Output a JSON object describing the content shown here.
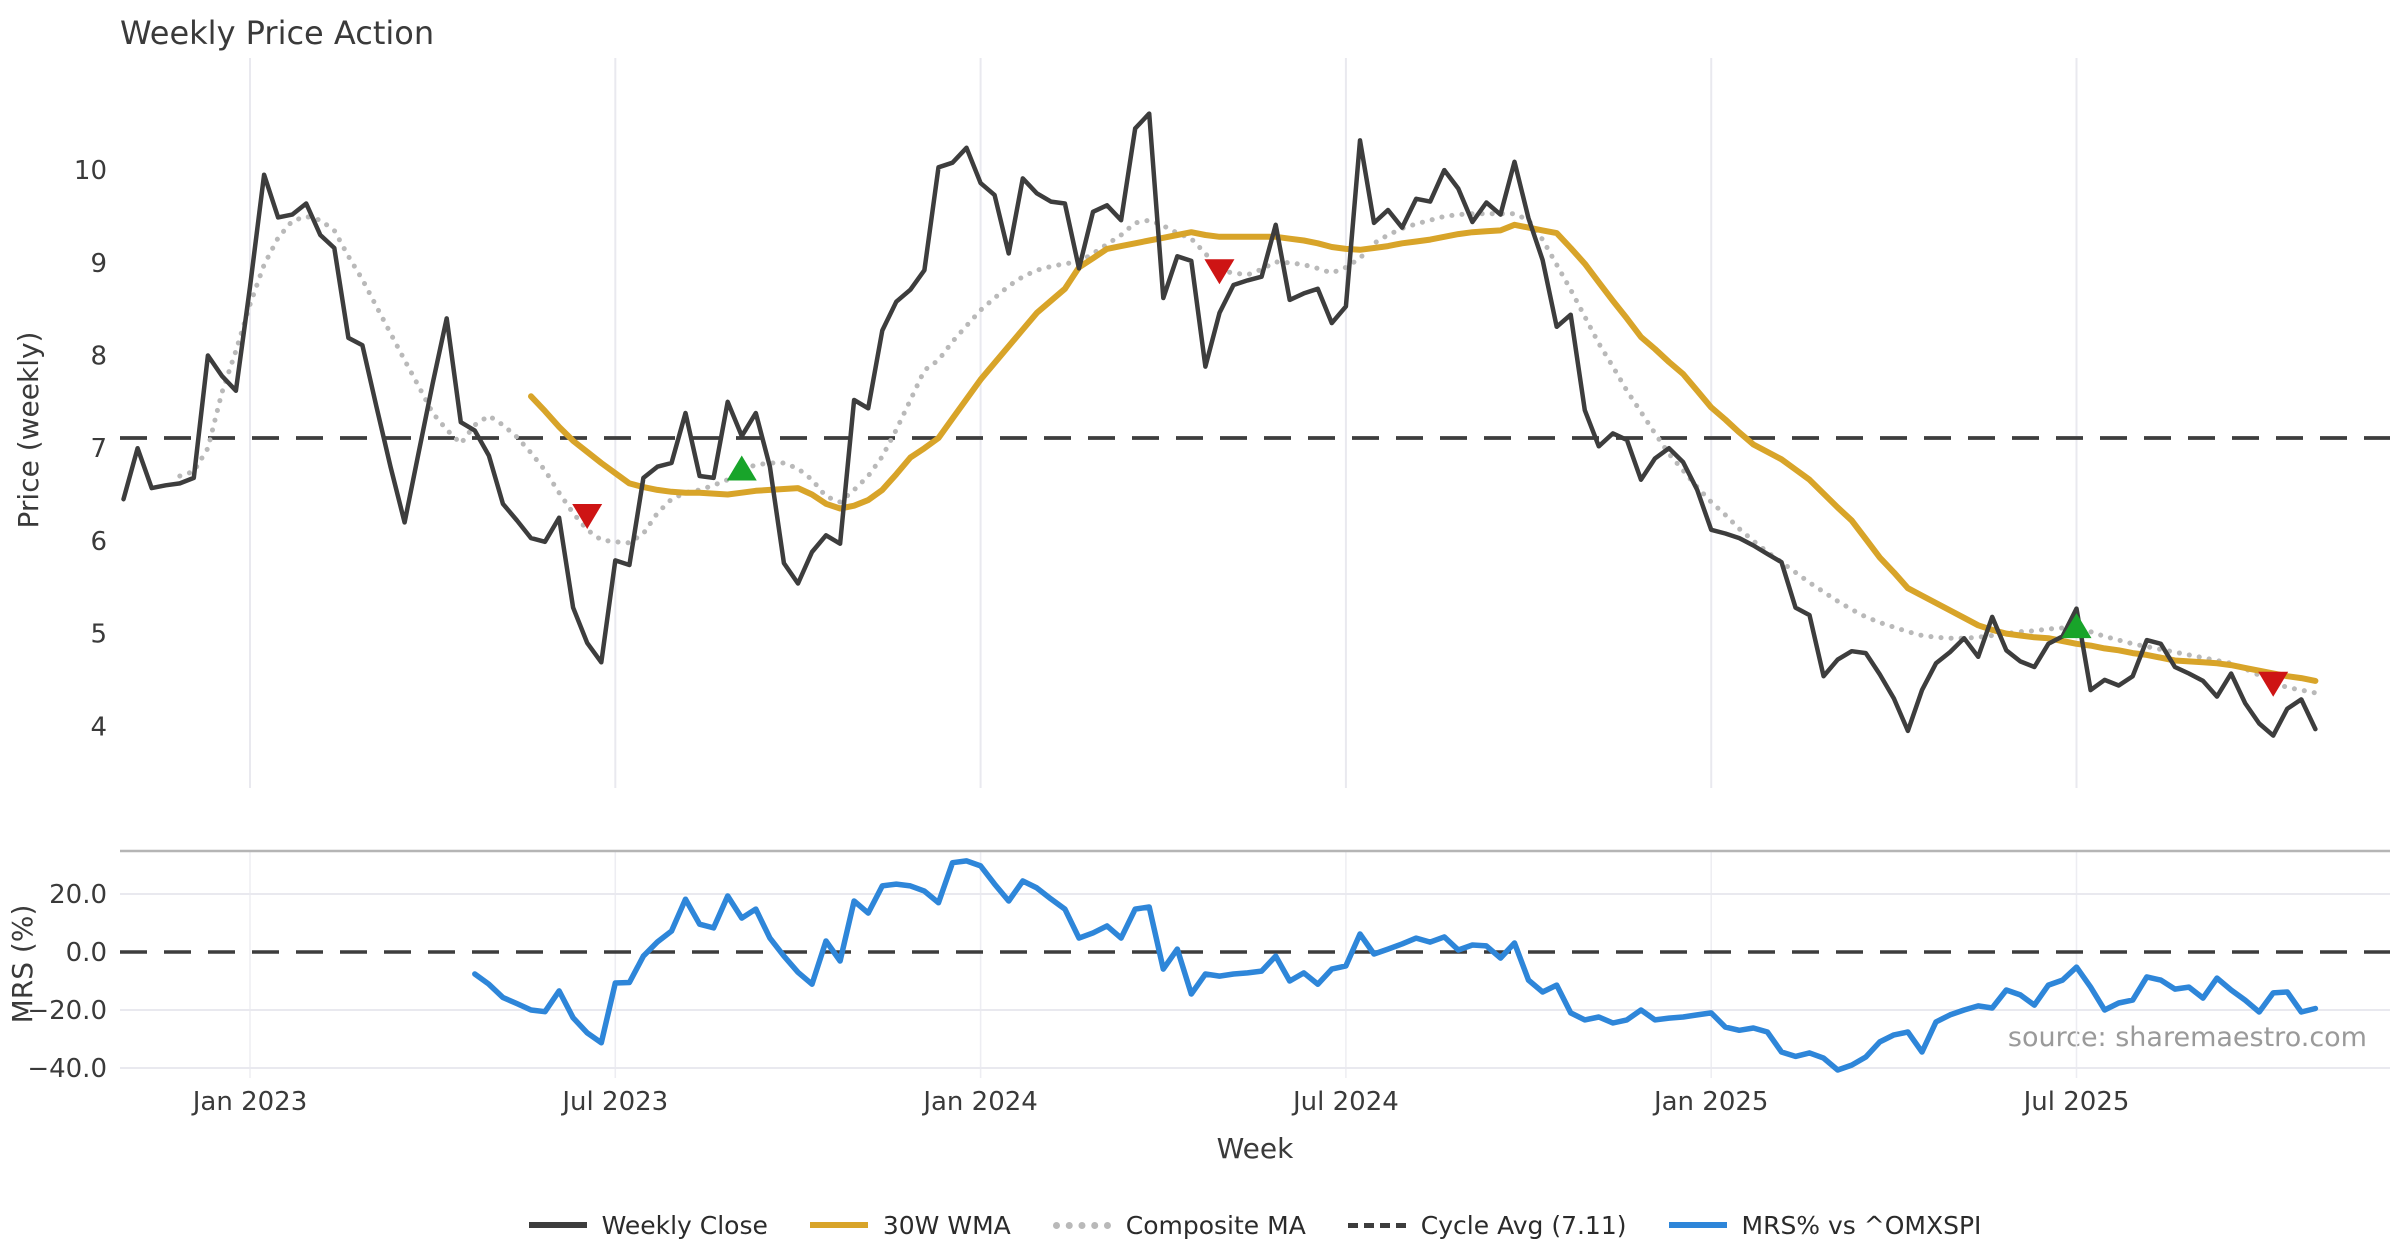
{
  "title": "Weekly Price Action",
  "xlabel": "Week",
  "source": "source: sharemaestro.com",
  "colors": {
    "weekly_close": "#3d3d3d",
    "wma30": "#d8a429",
    "composite": "#b9b9b9",
    "cycle_avg": "#3d3d3d",
    "mrs": "#2e86d9",
    "sell_marker": "#ce1414",
    "buy_marker": "#18a42a",
    "grid": "#e9e9ef",
    "grid_faint": "#ededf2",
    "spine": "#b5b5b5"
  },
  "legend": {
    "items": [
      {
        "label": "Weekly Close",
        "color": "#3d3d3d",
        "style": "solid"
      },
      {
        "label": "30W WMA",
        "color": "#d8a429",
        "style": "solid"
      },
      {
        "label": "Composite MA",
        "color": "#b9b9b9",
        "style": "dotted"
      },
      {
        "label": "Cycle Avg (7.11)",
        "color": "#3d3d3d",
        "style": "dashed"
      },
      {
        "label": "MRS% vs ^OMXSPI",
        "color": "#2e86d9",
        "style": "solid"
      }
    ]
  },
  "chart_data": [
    {
      "type": "line",
      "panel": "price",
      "title": "Weekly Price Action",
      "ylabel": "Price (weekly)",
      "ylim": [
        3.4,
        11.0
      ],
      "yticks": [
        4,
        5,
        6,
        7,
        8,
        9,
        10
      ],
      "grid": "vertical-only",
      "cycle_avg": 7.11,
      "x_ticks": [
        {
          "week": 9,
          "label": "Jan 2023"
        },
        {
          "week": 35,
          "label": "Jul 2023"
        },
        {
          "week": 61,
          "label": "Jan 2024"
        },
        {
          "week": 87,
          "label": "Jul 2024"
        },
        {
          "week": 113,
          "label": "Jan 2025"
        },
        {
          "week": 139,
          "label": "Jul 2025"
        }
      ],
      "series": [
        {
          "name": "Weekly Close",
          "style": "solid",
          "color": "#3d3d3d",
          "width": 4.5,
          "start_week": 0,
          "values": [
            6.45,
            7.0,
            6.57,
            6.6,
            6.62,
            6.68,
            8.0,
            7.78,
            7.62,
            8.74,
            9.95,
            9.49,
            9.52,
            9.64,
            9.3,
            9.16,
            8.19,
            8.11,
            7.45,
            6.8,
            6.2,
            6.95,
            7.7,
            8.4,
            7.28,
            7.19,
            6.92,
            6.4,
            6.22,
            6.03,
            5.99,
            6.25,
            5.28,
            4.9,
            4.69,
            5.79,
            5.74,
            6.68,
            6.8,
            6.84,
            7.38,
            6.7,
            6.68,
            7.5,
            7.13,
            7.38,
            6.8,
            5.76,
            5.54,
            5.88,
            6.06,
            5.97,
            7.52,
            7.43,
            8.27,
            8.58,
            8.71,
            8.92,
            10.03,
            10.08,
            10.24,
            9.86,
            9.73,
            9.1,
            9.91,
            9.75,
            9.66,
            9.64,
            8.94,
            9.55,
            9.62,
            9.46,
            10.45,
            10.61,
            8.62,
            9.07,
            9.02,
            7.88,
            8.46,
            8.76,
            8.81,
            8.85,
            9.41,
            8.6,
            8.67,
            8.72,
            8.35,
            8.53,
            10.32,
            9.43,
            9.57,
            9.38,
            9.69,
            9.66,
            10.0,
            9.8,
            9.44,
            9.65,
            9.52,
            10.09,
            9.48,
            9.03,
            8.31,
            8.44,
            7.41,
            7.02,
            7.16,
            7.09,
            6.66,
            6.89,
            7.0,
            6.85,
            6.55,
            6.12,
            6.08,
            6.03,
            5.95,
            5.86,
            5.77,
            5.28,
            5.2,
            4.54,
            4.72,
            4.81,
            4.79,
            4.56,
            4.3,
            3.95,
            4.39,
            4.68,
            4.8,
            4.95,
            4.75,
            5.18,
            4.82,
            4.7,
            4.64,
            4.89,
            4.97,
            5.27,
            4.39,
            4.5,
            4.44,
            4.54,
            4.93,
            4.89,
            4.64,
            4.57,
            4.49,
            4.32,
            4.57,
            4.25,
            4.03,
            3.9,
            4.19,
            4.29,
            3.97
          ]
        },
        {
          "name": "30W WMA",
          "style": "solid",
          "color": "#d8a429",
          "width": 6,
          "start_week": 29,
          "values": [
            7.56,
            7.4,
            7.23,
            7.08,
            6.96,
            6.84,
            6.73,
            6.62,
            6.58,
            6.55,
            6.53,
            6.52,
            6.52,
            6.51,
            6.5,
            6.52,
            6.54,
            6.55,
            6.56,
            6.57,
            6.5,
            6.4,
            6.35,
            6.38,
            6.44,
            6.55,
            6.72,
            6.9,
            7.0,
            7.11,
            7.32,
            7.53,
            7.74,
            7.92,
            8.1,
            8.28,
            8.46,
            8.59,
            8.72,
            8.95,
            9.05,
            9.15,
            9.18,
            9.21,
            9.24,
            9.27,
            9.3,
            9.33,
            9.3,
            9.28,
            9.28,
            9.28,
            9.28,
            9.28,
            9.26,
            9.24,
            9.21,
            9.17,
            9.15,
            9.14,
            9.16,
            9.18,
            9.21,
            9.23,
            9.25,
            9.28,
            9.31,
            9.33,
            9.34,
            9.35,
            9.41,
            9.38,
            9.35,
            9.32,
            9.16,
            8.99,
            8.79,
            8.59,
            8.4,
            8.2,
            8.07,
            7.93,
            7.8,
            7.62,
            7.44,
            7.31,
            7.17,
            7.04,
            6.96,
            6.88,
            6.77,
            6.66,
            6.51,
            6.36,
            6.22,
            6.02,
            5.82,
            5.66,
            5.49,
            5.41,
            5.33,
            5.25,
            5.17,
            5.09,
            5.04,
            5.0,
            4.98,
            4.96,
            4.95,
            4.92,
            4.89,
            4.87,
            4.84,
            4.82,
            4.79,
            4.77,
            4.74,
            4.71,
            4.7,
            4.69,
            4.68,
            4.66,
            4.63,
            4.6,
            4.57,
            4.54,
            4.52,
            4.49
          ]
        },
        {
          "name": "Composite MA",
          "style": "dotted",
          "color": "#b9b9b9",
          "width": 4.5,
          "start_week": 4,
          "values": [
            6.7,
            6.75,
            7.0,
            7.6,
            8.05,
            8.55,
            8.98,
            9.27,
            9.45,
            9.5,
            9.46,
            9.35,
            9.07,
            8.82,
            8.53,
            8.24,
            7.95,
            7.67,
            7.38,
            7.2,
            7.05,
            7.25,
            7.35,
            7.25,
            7.12,
            6.95,
            6.76,
            6.52,
            6.3,
            6.12,
            6.01,
            5.99,
            5.98,
            6.08,
            6.3,
            6.45,
            6.52,
            6.55,
            6.6,
            6.66,
            6.77,
            6.82,
            6.84,
            6.84,
            6.78,
            6.66,
            6.48,
            6.42,
            6.55,
            6.7,
            6.91,
            7.2,
            7.52,
            7.84,
            7.95,
            8.15,
            8.32,
            8.49,
            8.62,
            8.75,
            8.85,
            8.92,
            8.96,
            8.99,
            9.01,
            9.1,
            9.2,
            9.3,
            9.43,
            9.46,
            9.4,
            9.32,
            9.26,
            9.1,
            8.92,
            8.89,
            8.87,
            8.93,
            9.01,
            9.0,
            8.98,
            8.94,
            8.89,
            8.95,
            9.05,
            9.21,
            9.3,
            9.37,
            9.42,
            9.46,
            9.5,
            9.52,
            9.53,
            9.53,
            9.53,
            9.53,
            9.46,
            9.25,
            8.98,
            8.71,
            8.42,
            8.13,
            7.88,
            7.62,
            7.39,
            7.16,
            6.94,
            6.76,
            6.58,
            6.42,
            6.28,
            6.13,
            6.0,
            5.88,
            5.77,
            5.66,
            5.55,
            5.45,
            5.35,
            5.26,
            5.18,
            5.12,
            5.07,
            5.02,
            4.98,
            4.96,
            4.95,
            4.95,
            4.96,
            4.98,
            5.0,
            5.02,
            5.03,
            5.05,
            5.06,
            5.07,
            5.02,
            4.97,
            4.93,
            4.89,
            4.86,
            4.83,
            4.8,
            4.77,
            4.74,
            4.71,
            4.68,
            4.62,
            4.55,
            4.47,
            4.42,
            4.39,
            4.36
          ]
        }
      ],
      "markers": [
        {
          "week": 33,
          "value": 6.28,
          "type": "sell",
          "shape": "triangle-down",
          "color": "#ce1414"
        },
        {
          "week": 44,
          "value": 6.77,
          "type": "buy",
          "shape": "triangle-up",
          "color": "#18a42a"
        },
        {
          "week": 78,
          "value": 8.92,
          "type": "sell",
          "shape": "triangle-down",
          "color": "#ce1414"
        },
        {
          "week": 139,
          "value": 5.07,
          "type": "buy",
          "shape": "triangle-up",
          "color": "#18a42a"
        },
        {
          "week": 153,
          "value": 4.47,
          "type": "sell",
          "shape": "triangle-down",
          "color": "#ce1414"
        }
      ]
    },
    {
      "type": "line",
      "panel": "mrs",
      "ylabel": "MRS (%)",
      "ylim": [
        -44,
        35
      ],
      "yticks": [
        {
          "value": 20,
          "label": "20.0"
        },
        {
          "value": 0,
          "label": "0.0"
        },
        {
          "value": -20,
          "label": "−20.0"
        },
        {
          "value": -40,
          "label": "−40.0"
        }
      ],
      "zero_line_dashed": true,
      "series": [
        {
          "name": "MRS% vs ^OMXSPI",
          "style": "solid",
          "color": "#2e86d9",
          "width": 5.5,
          "start_week": 25,
          "values": [
            -7.6,
            -11.1,
            -15.7,
            -17.8,
            -20.0,
            -20.6,
            -13.4,
            -22.7,
            -27.9,
            -31.3,
            -10.7,
            -10.5,
            -1.4,
            3.5,
            7.2,
            18.2,
            9.6,
            8.3,
            19.3,
            11.7,
            14.8,
            4.8,
            -1.4,
            -7.0,
            -11.1,
            3.8,
            -3.1,
            17.6,
            13.4,
            22.8,
            23.4,
            22.8,
            21.0,
            17.0,
            30.8,
            31.4,
            29.7,
            23.4,
            17.6,
            24.5,
            22.1,
            18.3,
            14.8,
            4.8,
            6.6,
            9.0,
            4.8,
            14.8,
            15.5,
            -5.9,
            1.0,
            -14.5,
            -7.6,
            -8.3,
            -7.6,
            -7.2,
            -6.6,
            -1.4,
            -10.0,
            -7.2,
            -11.1,
            -5.9,
            -4.8,
            6.2,
            -0.7,
            1.0,
            2.8,
            4.8,
            3.4,
            5.2,
            0.7,
            2.4,
            2.1,
            -2.1,
            3.1,
            -9.7,
            -13.8,
            -11.4,
            -21.0,
            -23.4,
            -22.4,
            -24.5,
            -23.4,
            -20.0,
            -23.4,
            -22.8,
            -22.4,
            -21.7,
            -21.0,
            -25.9,
            -27.0,
            -26.2,
            -27.6,
            -34.5,
            -36.0,
            -34.8,
            -36.6,
            -40.7,
            -39.0,
            -36.2,
            -31.0,
            -28.6,
            -27.6,
            -34.5,
            -24.1,
            -21.7,
            -20.0,
            -18.6,
            -19.3,
            -13.1,
            -14.8,
            -18.3,
            -11.4,
            -9.7,
            -5.2,
            -12.1,
            -20.0,
            -17.6,
            -16.6,
            -8.6,
            -9.7,
            -12.8,
            -12.1,
            -15.9,
            -9.0,
            -13.1,
            -16.6,
            -20.7,
            -14.1,
            -13.8,
            -20.7,
            -19.5
          ]
        }
      ]
    }
  ]
}
